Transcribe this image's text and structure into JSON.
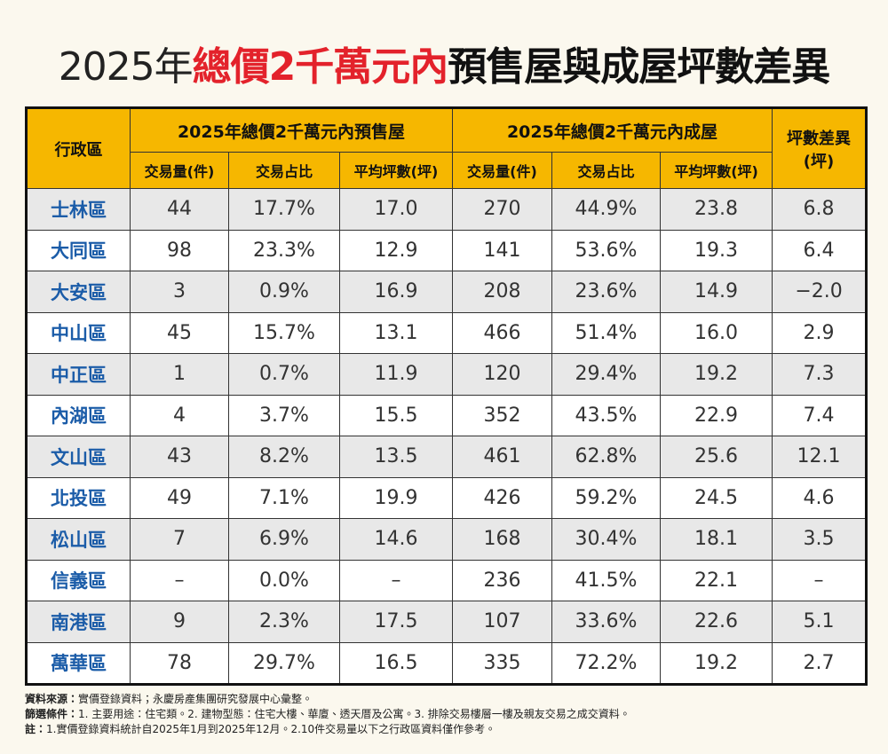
{
  "title": {
    "prefix": "2025年",
    "highlight": "總價2千萬元內",
    "suffix": "預售屋與成屋坪數差異"
  },
  "table": {
    "corner": "行政區",
    "groups": [
      "2025年總價2千萬元內預售屋",
      "2025年總價2千萬元內成屋"
    ],
    "diff_header": [
      "坪數差異",
      "(坪)"
    ],
    "subheaders": [
      "交易量(件)",
      "交易占比",
      "平均坪數(坪)",
      "交易量(件)",
      "交易占比",
      "平均坪數(坪)"
    ],
    "rows": [
      [
        "士林區",
        "44",
        "17.7%",
        "17.0",
        "270",
        "44.9%",
        "23.8",
        "6.8"
      ],
      [
        "大同區",
        "98",
        "23.3%",
        "12.9",
        "141",
        "53.6%",
        "19.3",
        "6.4"
      ],
      [
        "大安區",
        "3",
        "0.9%",
        "16.9",
        "208",
        "23.6%",
        "14.9",
        "−2.0"
      ],
      [
        "中山區",
        "45",
        "15.7%",
        "13.1",
        "466",
        "51.4%",
        "16.0",
        "2.9"
      ],
      [
        "中正區",
        "1",
        "0.7%",
        "11.9",
        "120",
        "29.4%",
        "19.2",
        "7.3"
      ],
      [
        "內湖區",
        "4",
        "3.7%",
        "15.5",
        "352",
        "43.5%",
        "22.9",
        "7.4"
      ],
      [
        "文山區",
        "43",
        "8.2%",
        "13.5",
        "461",
        "62.8%",
        "25.6",
        "12.1"
      ],
      [
        "北投區",
        "49",
        "7.1%",
        "19.9",
        "426",
        "59.2%",
        "24.5",
        "4.6"
      ],
      [
        "松山區",
        "7",
        "6.9%",
        "14.6",
        "168",
        "30.4%",
        "18.1",
        "3.5"
      ],
      [
        "信義區",
        "–",
        "0.0%",
        "–",
        "236",
        "41.5%",
        "22.1",
        "–"
      ],
      [
        "南港區",
        "9",
        "2.3%",
        "17.5",
        "107",
        "33.6%",
        "22.6",
        "5.1"
      ],
      [
        "萬華區",
        "78",
        "29.7%",
        "16.5",
        "335",
        "72.2%",
        "19.2",
        "2.7"
      ]
    ]
  },
  "notes": [
    {
      "label": "資料來源：",
      "text": "實價登錄資料；永慶房產集團研究發展中心彙整。"
    },
    {
      "label": "篩選條件：",
      "text": "1. 主要用途：住宅類。2. 建物型態：住宅大樓、華廈、透天厝及公寓。3. 排除交易樓層一樓及親友交易之成交資料。"
    },
    {
      "label": "註：",
      "text": "1.實價登錄資料統計自2025年1月到2025年12月。2.10件交易量以下之行政區資料僅作參考。"
    }
  ]
}
